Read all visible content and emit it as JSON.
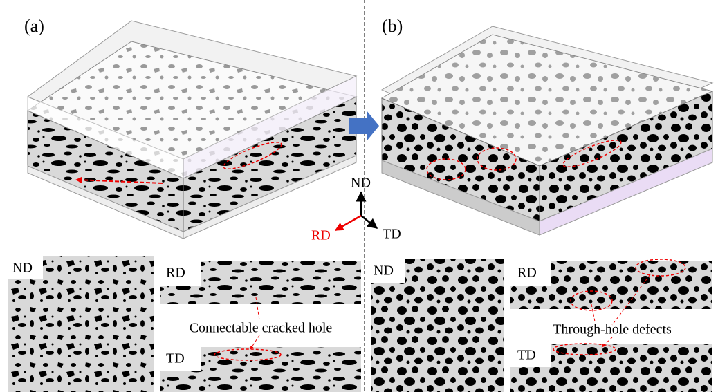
{
  "panel_a": {
    "label": "(a)",
    "views": {
      "nd": "ND",
      "rd": "RD",
      "td": "TD"
    },
    "annotation": "Connectable cracked hole"
  },
  "panel_b": {
    "label": "(b)",
    "views": {
      "nd": "ND",
      "rd": "RD",
      "td": "TD"
    },
    "annotation": "Through-hole defects"
  },
  "axes": {
    "nd": "ND",
    "rd": "RD",
    "td": "TD"
  }
}
